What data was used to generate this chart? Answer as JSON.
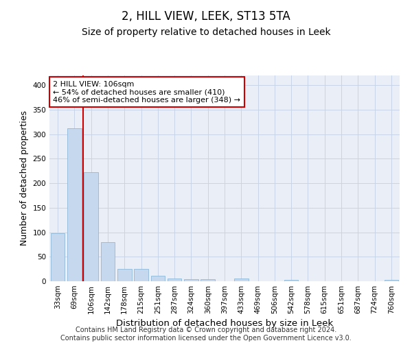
{
  "title": "2, HILL VIEW, LEEK, ST13 5TA",
  "subtitle": "Size of property relative to detached houses in Leek",
  "xlabel": "Distribution of detached houses by size in Leek",
  "ylabel": "Number of detached properties",
  "categories": [
    "33sqm",
    "69sqm",
    "106sqm",
    "142sqm",
    "178sqm",
    "215sqm",
    "251sqm",
    "287sqm",
    "324sqm",
    "360sqm",
    "397sqm",
    "433sqm",
    "469sqm",
    "506sqm",
    "542sqm",
    "578sqm",
    "615sqm",
    "651sqm",
    "687sqm",
    "724sqm",
    "760sqm"
  ],
  "values": [
    98,
    312,
    222,
    80,
    25,
    25,
    11,
    5,
    4,
    4,
    0,
    5,
    0,
    0,
    3,
    0,
    0,
    0,
    0,
    0,
    3
  ],
  "bar_color": "#c5d8ed",
  "bar_edge_color": "#8fb8d8",
  "vline_index": 2,
  "vline_color": "#cc0000",
  "annotation_line1": "2 HILL VIEW: 106sqm",
  "annotation_line2": "← 54% of detached houses are smaller (410)",
  "annotation_line3": "46% of semi-detached houses are larger (348) →",
  "annotation_box_color": "#ffffff",
  "annotation_box_edge_color": "#cc0000",
  "ylim": [
    0,
    420
  ],
  "yticks": [
    0,
    50,
    100,
    150,
    200,
    250,
    300,
    350,
    400
  ],
  "footer_text": "Contains HM Land Registry data © Crown copyright and database right 2024.\nContains public sector information licensed under the Open Government Licence v3.0.",
  "title_fontsize": 12,
  "subtitle_fontsize": 10,
  "axis_label_fontsize": 9,
  "tick_fontsize": 7.5,
  "annotation_fontsize": 8,
  "footer_fontsize": 7,
  "grid_color": "#c8d4e8",
  "bg_color": "#eaeff7"
}
